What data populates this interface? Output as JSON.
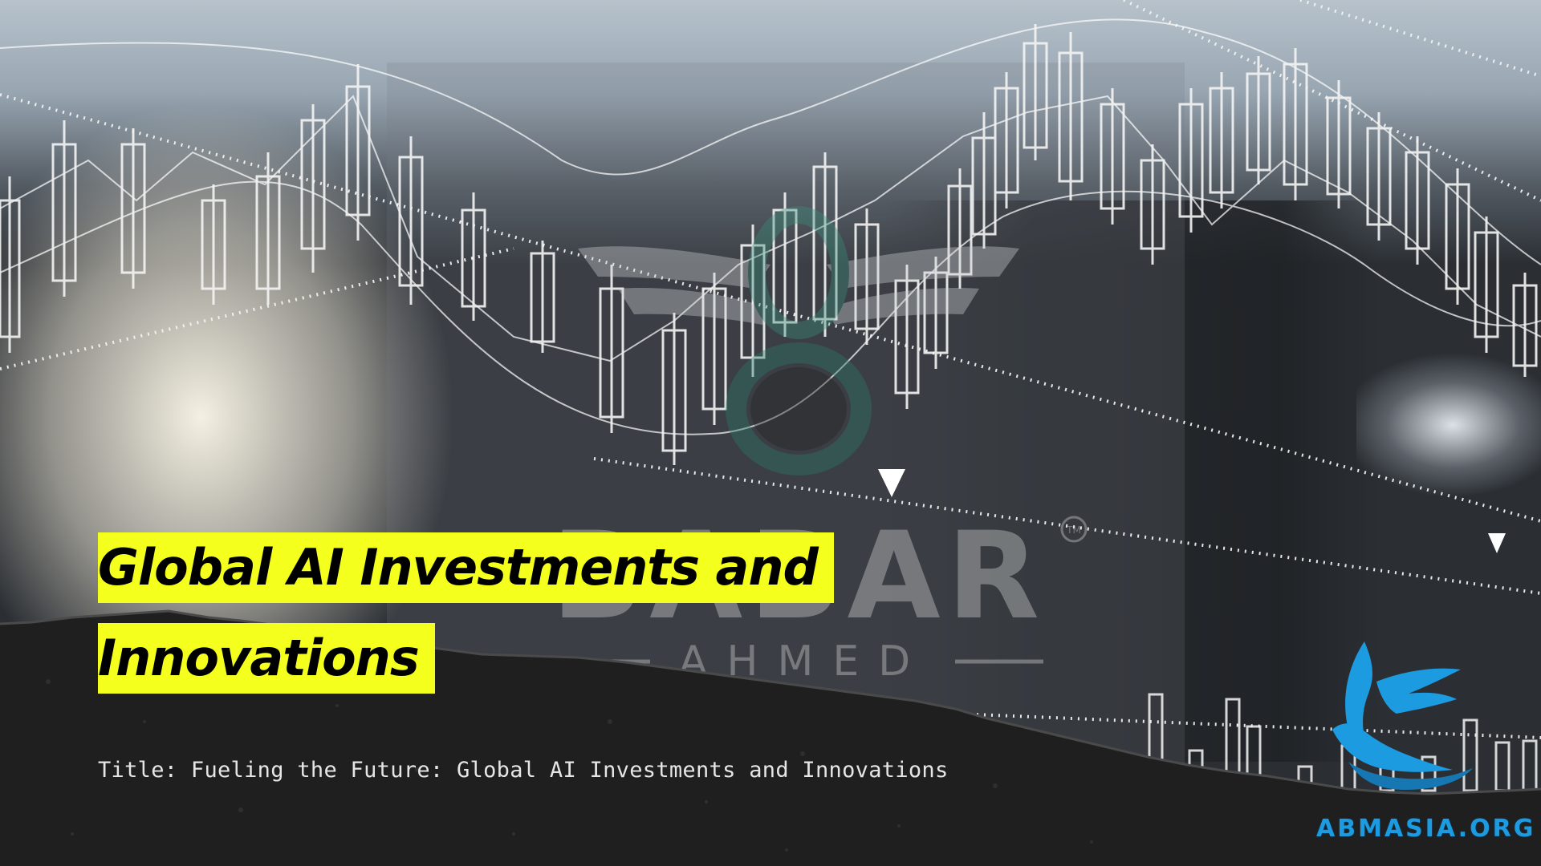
{
  "slide": {
    "title_lines": [
      "Global AI Investments and",
      "Innovations"
    ],
    "subtitle": "Title: Fueling the Future: Global AI Investments and Innovations",
    "highlight_color": "#f5ff1e"
  },
  "watermark": {
    "brand_name": "BABAR",
    "brand_tagline": "AHMED",
    "trademark": "TM"
  },
  "corner_logo": {
    "icon": "eagle-icon",
    "text": "ABMASIA.ORG",
    "color": "#1d9be0"
  }
}
